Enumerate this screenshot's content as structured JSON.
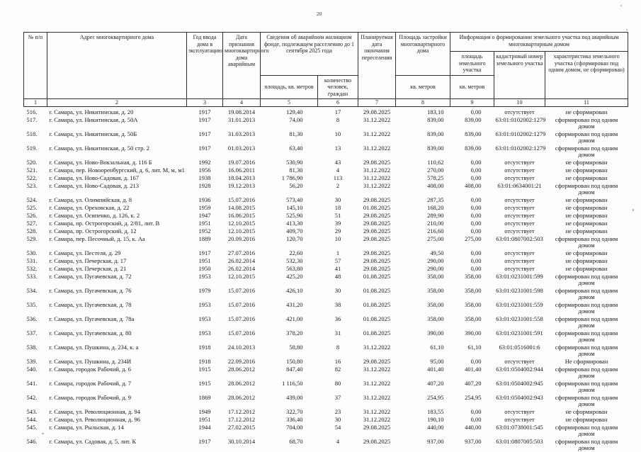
{
  "page": {
    "number": "20"
  },
  "table": {
    "headers": {
      "col1": "№ п/п",
      "col2": "Адрес многоквартирного дома",
      "col3": "Год ввода дома в эксплуатацию",
      "col4": "Дата признания многоквартирного дома аварийным",
      "col5_group": "Сведения об аварийном жилищном фонде, подлежащем расселению до 1 сентября 2025 года",
      "col5": "площадь, кв. метров",
      "col6": "количество человек, граждан",
      "col7": "Планируемая дата окончания переселения",
      "col8": "Площадь застройки многоквартирного дома",
      "col8_unit": "кв. метров",
      "col9_group": "Информация о формировании земельного участка под аварийным многоквартирным домом",
      "col9": "площадь земельного участка",
      "col9_unit": "кв. метров",
      "col10": "кадастровый номер земельного участка",
      "col11": "характеристика земельного участка (сформирован под одним домом, не сформирован)",
      "numbers": [
        "1",
        "2",
        "3",
        "4",
        "5",
        "6",
        "7",
        "8",
        "9",
        "10",
        "11"
      ]
    },
    "rows": [
      [
        "516.",
        "г. Самара, ул. Никитинская, д. 20",
        "1917",
        "19.08.2014",
        "129,40",
        "17",
        "29.08.2025",
        "183,10",
        "0,00",
        "отсутствует",
        "не сформирован"
      ],
      [
        "517.",
        "г. Самара, ул. Никитинская, д. 50А",
        "1917",
        "31.01.2013",
        "74,00",
        "8",
        "31.12.2022",
        "839,00",
        "839,00",
        "63:01:0102002:1279",
        "сформирован под одним домом"
      ],
      [
        "518.",
        "г. Самара, ул. Никитинская, д. 50Б",
        "1917",
        "31.03.2013",
        "81,30",
        "10",
        "31.12.2022",
        "839,00",
        "839,00",
        "63:01:0102002:1279",
        "сформирован под одним домом"
      ],
      [
        "519.",
        "г. Самара, ул. Никитинская, д. 50 стр. 2",
        "1917",
        "01.03.2013",
        "63,40",
        "13",
        "31.12.2022",
        "839,00",
        "839,00",
        "63:01:0102002:1279",
        "сформирован под одним домом"
      ],
      [
        "520.",
        "г. Самара, ул. Ново-Вокзальная, д. 116 Б",
        "1992",
        "19.07.2016",
        "530,90",
        "43",
        "29.08.2025",
        "110,62",
        "0,00",
        "отсутствует",
        "не сформирован"
      ],
      [
        "521.",
        "г. Самара, пер. Новооренбургский, д. 6, лит. М, м, м1",
        "1956",
        "16.06.2011",
        "81,30",
        "4",
        "31.12.2022",
        "270,00",
        "0,00",
        "отсутствует",
        "не сформирован"
      ],
      [
        "522.",
        "г. Самара, ул. Ново-Садовая, д. 167",
        "1938",
        "18.04.2013",
        "1 786,90",
        "113",
        "31.12.2022",
        "578,25",
        "0,00",
        "отсутствует",
        "не сформирован"
      ],
      [
        "523.",
        "г. Самара, ул. Ново-Садовая, д. 213",
        "1928",
        "19.12.2013",
        "56,20",
        "2",
        "31.12.2022",
        "408,00",
        "408,00",
        "63:01:0634001:21",
        "сформирован под одним домом"
      ],
      [
        "524.",
        "г. Самара, ул. Олимпийская, д. 8",
        "1936",
        "15.07.2016",
        "573,40",
        "30",
        "29.08.2025",
        "287,35",
        "0,00",
        "отсутствует",
        "не сформирован"
      ],
      [
        "525.",
        "г. Самара, ул. Ореховская, д. 22",
        "1959",
        "14.08.2015",
        "145,10",
        "18",
        "01.08.2025",
        "168,20",
        "0,00",
        "отсутствует",
        "не сформирован"
      ],
      [
        "526.",
        "г. Самара, ул. Осипенко, д. 126, к. 2",
        "1947",
        "16.06.2015",
        "525,90",
        "51",
        "29.08.2025",
        "289,90",
        "0,00",
        "отсутствует",
        "не сформирован"
      ],
      [
        "527.",
        "г. Самара, пр. Острогорский, д. 2/81, лит. В",
        "1951",
        "12.10.2015",
        "413,30",
        "39",
        "29.08.2025",
        "210,00",
        "0,00",
        "отсутствует",
        "не сформирован"
      ],
      [
        "528.",
        "г. Самара, пр. Острогорский, д. 12",
        "1952",
        "12.10.2015",
        "409,70",
        "29",
        "29.08.2025",
        "216,60",
        "0,00",
        "отсутствует",
        "не сформирован"
      ],
      [
        "529.",
        "г. Самара, пер. Песочный, д. 15, к. Аа",
        "1889",
        "20.09.2016",
        "120,70",
        "10",
        "29.08.2025",
        "275,00",
        "275,00",
        "63:01:0807002:503",
        "сформирован под одним домом"
      ],
      [
        "530.",
        "г. Самара, ул. Пестеля, д. 29",
        "1917",
        "27.07.2016",
        "22,60",
        "1",
        "29.08.2025",
        "49,50",
        "0,00",
        "отсутствует",
        "не сформирован"
      ],
      [
        "531.",
        "г. Самара, ул. Печерская, д. 17",
        "1951",
        "26.02.2014",
        "532,30",
        "57",
        "29.08.2025",
        "290,00",
        "0,00",
        "отсутствует",
        "не сформирован"
      ],
      [
        "532.",
        "г. Самара, ул. Печерская, д. 21",
        "1950",
        "26.02.2014",
        "563,80",
        "41",
        "29.08.2025",
        "290,00",
        "0,00",
        "отсутствует",
        "не сформирован"
      ],
      [
        "533.",
        "г. Самара, ул. Пугачевская, д. 72",
        "1953",
        "12.10.2015",
        "425,20",
        "48",
        "01.08.2025",
        "358,00",
        "358,00",
        "63:01:0231001:599",
        "сформирован под одним домом"
      ],
      [
        "534.",
        "г. Самара, ул. Пугачевская, д. 76",
        "1979",
        "15.07.2016",
        "426,10",
        "30",
        "01.08.2025",
        "358,00",
        "358,00",
        "63:01:0231001:598",
        "сформирован под одним домом"
      ],
      [
        "535.",
        "г. Самара, ул. Пугачевская, д. 78",
        "1953",
        "15.07.2016",
        "431,20",
        "38",
        "01.08.2025",
        "358,00",
        "358,00",
        "63:01:0231001:559",
        "сформирован под одним домом"
      ],
      [
        "536.",
        "г. Самара, ул. Пугачевская, д. 78а",
        "1953",
        "15.07.2016",
        "421,00",
        "36",
        "01.08.2025",
        "358,00",
        "358,00",
        "63:01:0231001:558",
        "сформирован под одним домом"
      ],
      [
        "537.",
        "г. Самара, ул. Пугачевская, д. 80",
        "1953",
        "15.07.2016",
        "378,20",
        "31",
        "01.08.2025",
        "390,00",
        "390,00",
        "63:01:0231001:591",
        "сформирован под одним домом"
      ],
      [
        "538.",
        "г. Самара, ул. Пушкина, д. 234, к. а",
        "1918",
        "24.10.2013",
        "58,80",
        "8",
        "31.12.2022",
        "61,10",
        "61,10",
        "63:01:0516001:6",
        "сформирован под одним домом"
      ],
      [
        "539.",
        "г. Самара, ул. Пушкина, д. 234И",
        "1918",
        "22.09.2016",
        "150,80",
        "16",
        "29.08.2025",
        "95,00",
        "0,00",
        "отсутствует",
        "Не сформирован"
      ],
      [
        "540.",
        "г. Самара, городок Рабочий, д. 6",
        "1915",
        "28.06.2012",
        "847,40",
        "82",
        "31.12.2022",
        "401,40",
        "401,40",
        "63:01:0504002:944",
        "сформирован под одним домом"
      ],
      [
        "541.",
        "г. Самара, городок Рабочий, д. 7",
        "1915",
        "28.06.2012",
        "1 116,50",
        "80",
        "31.12.2022",
        "407,20",
        "407,20",
        "63:01:0504002:945",
        "сформирован под одним домом"
      ],
      [
        "542.",
        "г. Самара, городок Рабочий, д. 9",
        "1869",
        "28.06.2012",
        "439,00",
        "37",
        "31.12.2022",
        "254,95",
        "254,95",
        "63:01:0504002:943",
        "сформирован под одним домом"
      ],
      [
        "543.",
        "г. Самара, ул. Революционная, д. 94",
        "1949",
        "17.12.2012",
        "322,70",
        "23",
        "31.12.2022",
        "183,55",
        "0,00",
        "отсутствует",
        "не сформирован"
      ],
      [
        "544.",
        "г. Самара, ул. Революционная, д. 96",
        "1951",
        "17.12.2012",
        "336,40",
        "30",
        "31.12.2022",
        "190,10",
        "0,00",
        "отсутствует",
        "не сформирован"
      ],
      [
        "545.",
        "г. Самара, ул. Рыльская, д. 14",
        "1944",
        "27.02.2015",
        "704,00",
        "54",
        "29.08.2025",
        "440,00",
        "440,00",
        "63:01:0738001:545",
        "сформирован под одним домом"
      ],
      [
        "546.",
        "г. Самара, ул. Садовая, д. 5, лит. К",
        "1917",
        "30.10.2014",
        "68,70",
        "4",
        "29.08.2025",
        "937,00",
        "937,00",
        "63:01:0807005:503",
        "сформирован под одним домом"
      ]
    ]
  }
}
